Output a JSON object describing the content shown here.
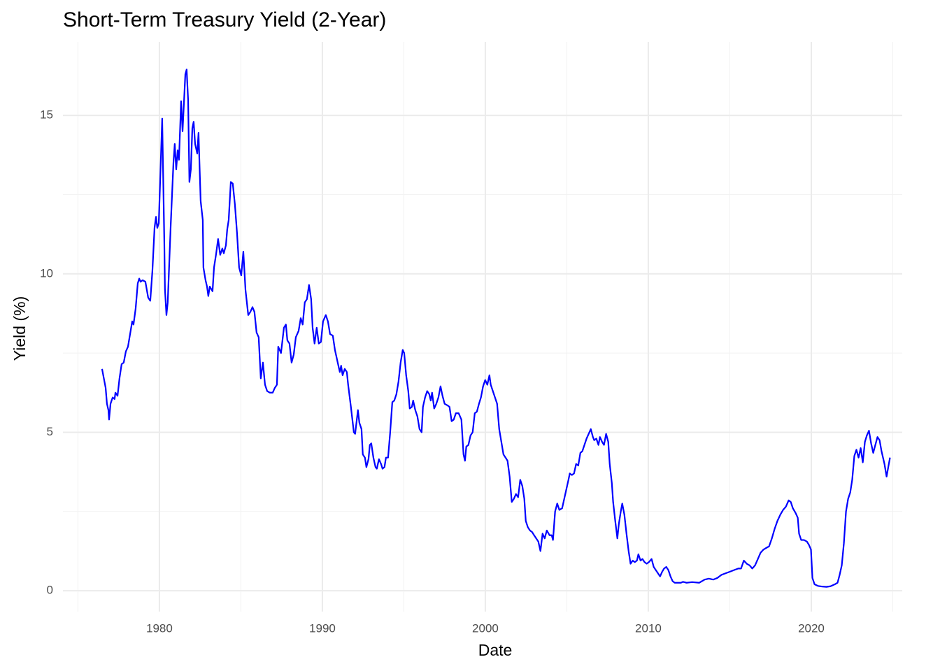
{
  "chart_data": {
    "type": "line",
    "title": "Short-Term Treasury Yield (2-Year)",
    "x_label": "Date",
    "y_label": "Yield (%)",
    "color": "#0000ff",
    "grid": true,
    "xlim": [
      1974.08,
      2025.58
    ],
    "xticks": [
      1980,
      1990,
      2000,
      2010,
      2020
    ],
    "minor_xticks": [
      1975,
      1985,
      1995,
      2005,
      2015,
      2025
    ],
    "ylim": [
      -0.66,
      17.32
    ],
    "yticks": [
      0,
      5,
      10,
      15
    ],
    "minor_yticks": [
      2.5,
      7.5,
      12.5
    ],
    "x": [
      1976.48,
      1976.7,
      1976.78,
      1976.87,
      1976.91,
      1977.0,
      1977.13,
      1977.25,
      1977.3,
      1977.43,
      1977.55,
      1977.68,
      1977.81,
      1977.94,
      1978.07,
      1978.2,
      1978.33,
      1978.41,
      1978.54,
      1978.67,
      1978.76,
      1978.84,
      1978.97,
      1979.14,
      1979.31,
      1979.44,
      1979.57,
      1979.7,
      1979.79,
      1979.87,
      1979.96,
      1980.17,
      1980.3,
      1980.34,
      1980.43,
      1980.51,
      1980.69,
      1980.86,
      1980.94,
      1981.03,
      1981.12,
      1981.2,
      1981.33,
      1981.42,
      1981.59,
      1981.67,
      1981.76,
      1981.84,
      1981.93,
      1982.02,
      1982.1,
      1982.19,
      1982.32,
      1982.4,
      1982.53,
      1982.66,
      1982.7,
      1982.83,
      1982.92,
      1983.0,
      1983.09,
      1983.26,
      1983.35,
      1983.47,
      1983.6,
      1983.73,
      1983.86,
      1983.95,
      1984.08,
      1984.16,
      1984.25,
      1984.38,
      1984.5,
      1984.63,
      1984.76,
      1984.89,
      1985.02,
      1985.15,
      1985.28,
      1985.45,
      1985.58,
      1985.71,
      1985.83,
      1985.96,
      1986.09,
      1986.22,
      1986.35,
      1986.48,
      1986.61,
      1986.78,
      1986.95,
      1987.08,
      1987.21,
      1987.29,
      1987.46,
      1987.64,
      1987.76,
      1987.85,
      1987.98,
      1988.11,
      1988.24,
      1988.37,
      1988.54,
      1988.67,
      1988.79,
      1988.92,
      1989.05,
      1989.18,
      1989.31,
      1989.4,
      1989.52,
      1989.65,
      1989.78,
      1989.91,
      1990.04,
      1990.21,
      1990.34,
      1990.47,
      1990.64,
      1990.77,
      1990.94,
      1991.07,
      1991.15,
      1991.24,
      1991.37,
      1991.5,
      1991.58,
      1991.75,
      1991.93,
      1992.01,
      1992.18,
      1992.27,
      1992.4,
      1992.48,
      1992.61,
      1992.7,
      1992.83,
      1992.91,
      1993.0,
      1993.13,
      1993.26,
      1993.34,
      1993.47,
      1993.6,
      1993.69,
      1993.81,
      1993.9,
      1994.03,
      1994.16,
      1994.29,
      1994.41,
      1994.54,
      1994.67,
      1994.8,
      1994.93,
      1995.02,
      1995.14,
      1995.27,
      1995.36,
      1995.49,
      1995.57,
      1995.7,
      1995.83,
      1995.96,
      1996.09,
      1996.17,
      1996.3,
      1996.43,
      1996.56,
      1996.65,
      1996.73,
      1996.86,
      1996.99,
      1997.12,
      1997.25,
      1997.37,
      1997.5,
      1997.67,
      1997.8,
      1997.93,
      1998.06,
      1998.19,
      1998.36,
      1998.53,
      1998.66,
      1998.75,
      1998.83,
      1998.96,
      1999.09,
      1999.22,
      1999.35,
      1999.48,
      1999.61,
      1999.73,
      1999.86,
      1999.99,
      2000.12,
      2000.25,
      2000.33,
      2000.46,
      2000.59,
      2000.72,
      2000.85,
      2000.98,
      2001.11,
      2001.24,
      2001.36,
      2001.49,
      2001.62,
      2001.75,
      2001.88,
      2002.01,
      2002.14,
      2002.27,
      2002.39,
      2002.48,
      2002.61,
      2002.74,
      2002.87,
      2002.99,
      2003.12,
      2003.25,
      2003.38,
      2003.51,
      2003.64,
      2003.77,
      2003.94,
      2004.07,
      2004.15,
      2004.28,
      2004.41,
      2004.54,
      2004.71,
      2004.84,
      2004.97,
      2005.1,
      2005.18,
      2005.31,
      2005.44,
      2005.57,
      2005.7,
      2005.83,
      2005.95,
      2006.08,
      2006.21,
      2006.34,
      2006.47,
      2006.6,
      2006.68,
      2006.81,
      2006.94,
      2007.03,
      2007.16,
      2007.28,
      2007.41,
      2007.54,
      2007.63,
      2007.76,
      2007.84,
      2007.97,
      2008.1,
      2008.19,
      2008.31,
      2008.4,
      2008.53,
      2008.66,
      2008.79,
      2008.91,
      2009.04,
      2009.17,
      2009.3,
      2009.39,
      2009.52,
      2009.64,
      2009.77,
      2009.9,
      2010.03,
      2010.2,
      2010.33,
      2010.46,
      2010.59,
      2010.72,
      2010.85,
      2010.97,
      2011.1,
      2011.23,
      2011.36,
      2011.49,
      2011.62,
      2011.75,
      2011.87,
      2012.0,
      2012.13,
      2012.35,
      2012.69,
      2013.12,
      2013.46,
      2013.72,
      2013.98,
      2014.23,
      2014.49,
      2014.75,
      2015.01,
      2015.26,
      2015.52,
      2015.69,
      2015.86,
      2016.04,
      2016.21,
      2016.38,
      2016.55,
      2016.72,
      2016.89,
      2017.07,
      2017.24,
      2017.41,
      2017.58,
      2017.75,
      2017.92,
      2018.1,
      2018.27,
      2018.44,
      2018.61,
      2018.74,
      2018.87,
      2019.04,
      2019.17,
      2019.25,
      2019.38,
      2019.55,
      2019.73,
      2019.85,
      2019.98,
      2020.07,
      2020.2,
      2020.41,
      2020.67,
      2020.93,
      2021.18,
      2021.44,
      2021.61,
      2021.74,
      2021.87,
      2022.0,
      2022.13,
      2022.26,
      2022.39,
      2022.51,
      2022.64,
      2022.77,
      2022.9,
      2023.03,
      2023.16,
      2023.29,
      2023.41,
      2023.54,
      2023.67,
      2023.8,
      2023.93,
      2024.06,
      2024.19,
      2024.31,
      2024.49,
      2024.62,
      2024.74,
      2024.83
    ],
    "values": [
      7.0,
      6.4,
      5.9,
      5.7,
      5.4,
      5.9,
      6.1,
      6.05,
      6.25,
      6.15,
      6.7,
      7.15,
      7.2,
      7.55,
      7.7,
      8.1,
      8.5,
      8.4,
      8.9,
      9.7,
      9.85,
      9.75,
      9.8,
      9.75,
      9.25,
      9.15,
      10.1,
      11.45,
      11.8,
      11.45,
      11.6,
      14.9,
      11.0,
      9.5,
      8.7,
      9.1,
      11.5,
      13.5,
      14.1,
      13.3,
      13.9,
      13.6,
      15.45,
      14.5,
      16.3,
      16.45,
      15.5,
      12.9,
      13.3,
      14.6,
      14.8,
      14.1,
      13.8,
      14.45,
      12.3,
      11.7,
      10.2,
      9.8,
      9.6,
      9.3,
      9.6,
      9.45,
      10.2,
      10.6,
      11.1,
      10.6,
      10.8,
      10.65,
      10.9,
      11.4,
      11.7,
      12.9,
      12.85,
      12.2,
      11.3,
      10.2,
      9.95,
      10.7,
      9.5,
      8.7,
      8.8,
      8.95,
      8.8,
      8.15,
      8.0,
      6.7,
      7.2,
      6.5,
      6.3,
      6.25,
      6.25,
      6.4,
      6.5,
      7.7,
      7.5,
      8.3,
      8.4,
      7.9,
      7.8,
      7.2,
      7.45,
      8.0,
      8.2,
      8.6,
      8.4,
      9.1,
      9.2,
      9.65,
      9.2,
      8.3,
      7.8,
      8.3,
      7.8,
      7.85,
      8.5,
      8.7,
      8.5,
      8.1,
      8.05,
      7.6,
      7.2,
      6.9,
      7.1,
      6.8,
      7.0,
      6.9,
      6.5,
      5.8,
      5.0,
      4.95,
      5.7,
      5.3,
      5.1,
      4.3,
      4.2,
      3.9,
      4.15,
      4.6,
      4.65,
      4.2,
      3.9,
      3.85,
      4.15,
      4.0,
      3.85,
      3.9,
      4.2,
      4.2,
      5.0,
      5.95,
      6.0,
      6.2,
      6.6,
      7.2,
      7.6,
      7.5,
      6.8,
      6.3,
      5.75,
      5.8,
      6.0,
      5.7,
      5.5,
      5.1,
      5.0,
      5.8,
      6.1,
      6.3,
      6.2,
      6.0,
      6.25,
      5.75,
      5.9,
      6.1,
      6.45,
      6.15,
      5.9,
      5.85,
      5.8,
      5.35,
      5.4,
      5.6,
      5.6,
      5.4,
      4.3,
      4.1,
      4.55,
      4.6,
      4.9,
      5.0,
      5.6,
      5.65,
      5.9,
      6.1,
      6.45,
      6.65,
      6.5,
      6.8,
      6.5,
      6.3,
      6.1,
      5.9,
      5.1,
      4.7,
      4.3,
      4.2,
      4.1,
      3.6,
      2.8,
      2.9,
      3.05,
      2.95,
      3.5,
      3.3,
      2.9,
      2.2,
      2.0,
      1.9,
      1.85,
      1.75,
      1.65,
      1.55,
      1.25,
      1.8,
      1.65,
      1.9,
      1.75,
      1.75,
      1.6,
      2.5,
      2.75,
      2.55,
      2.6,
      2.9,
      3.2,
      3.5,
      3.7,
      3.65,
      3.7,
      4.0,
      3.95,
      4.35,
      4.4,
      4.6,
      4.8,
      4.95,
      5.1,
      4.85,
      4.75,
      4.8,
      4.6,
      4.85,
      4.7,
      4.6,
      4.95,
      4.7,
      4.0,
      3.4,
      2.8,
      2.2,
      1.65,
      2.1,
      2.5,
      2.75,
      2.4,
      1.8,
      1.25,
      0.85,
      0.95,
      0.9,
      0.95,
      1.15,
      0.95,
      1.0,
      0.9,
      0.85,
      0.9,
      1.0,
      0.75,
      0.65,
      0.55,
      0.45,
      0.6,
      0.7,
      0.75,
      0.65,
      0.45,
      0.3,
      0.25,
      0.25,
      0.25,
      0.25,
      0.28,
      0.25,
      0.27,
      0.25,
      0.35,
      0.38,
      0.35,
      0.4,
      0.5,
      0.55,
      0.6,
      0.65,
      0.7,
      0.7,
      0.95,
      0.85,
      0.8,
      0.7,
      0.8,
      1.0,
      1.2,
      1.3,
      1.35,
      1.4,
      1.65,
      1.95,
      2.2,
      2.4,
      2.55,
      2.65,
      2.85,
      2.8,
      2.6,
      2.45,
      2.3,
      1.8,
      1.6,
      1.6,
      1.55,
      1.45,
      1.3,
      0.4,
      0.2,
      0.15,
      0.13,
      0.12,
      0.14,
      0.2,
      0.25,
      0.5,
      0.8,
      1.5,
      2.5,
      2.9,
      3.1,
      3.5,
      4.25,
      4.45,
      4.2,
      4.5,
      4.05,
      4.7,
      4.9,
      5.05,
      4.65,
      4.35,
      4.6,
      4.85,
      4.75,
      4.4,
      4.0,
      3.6,
      3.95,
      4.2
    ]
  }
}
